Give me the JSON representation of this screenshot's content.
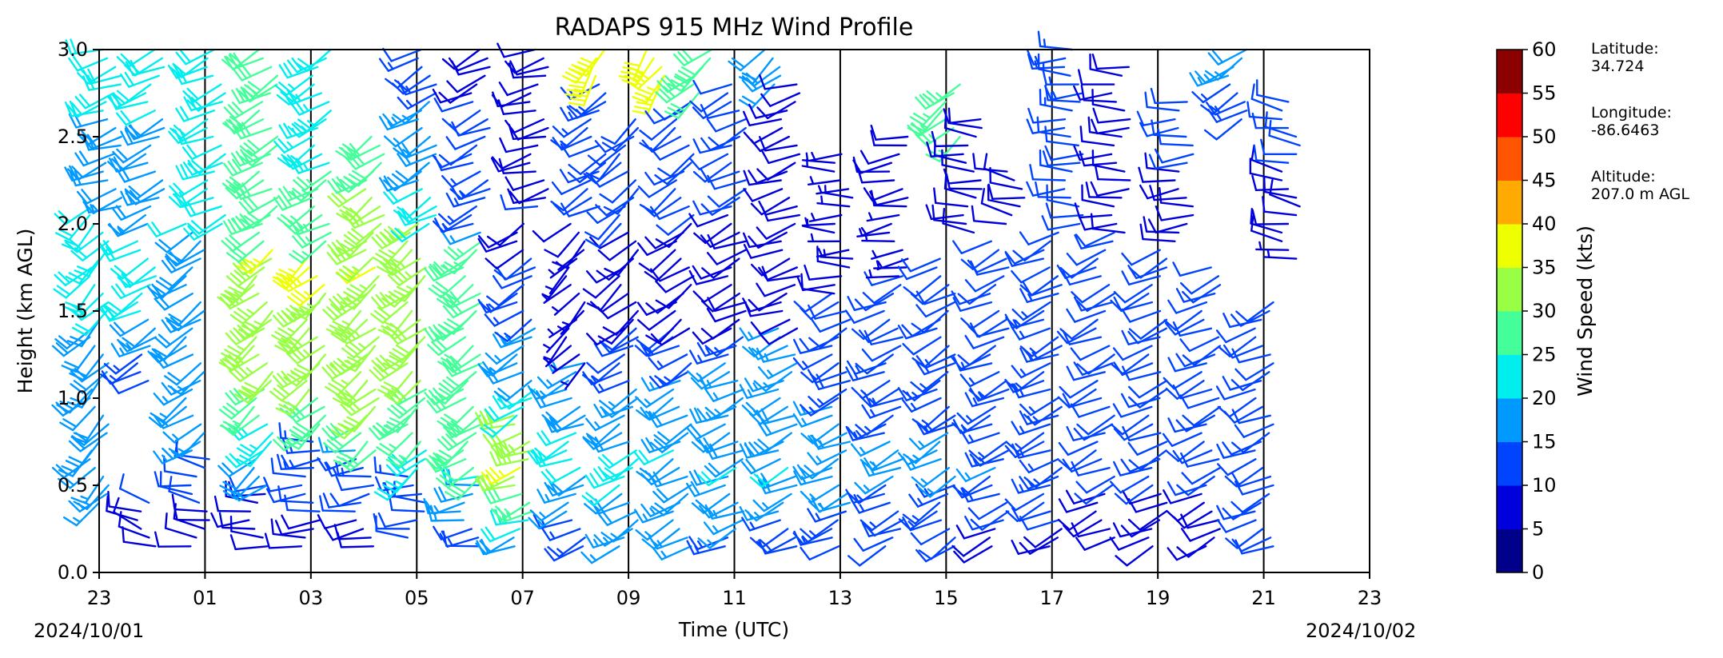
{
  "chart_data": {
    "type": "wind_barbs",
    "title": "RADAPS 915 MHz Wind Profile",
    "xlabel": "Time (UTC)",
    "ylabel": "Height (km AGL)",
    "x_ticks": [
      "23",
      "01",
      "03",
      "05",
      "07",
      "09",
      "11",
      "13",
      "15",
      "17",
      "19",
      "21",
      "23"
    ],
    "x_hours_from_start": [
      0,
      2,
      4,
      6,
      8,
      10,
      12,
      14,
      16,
      18,
      20,
      22,
      24
    ],
    "start_date_label": "2024/10/01",
    "end_date_label": "2024/10/02",
    "xlim": [
      0,
      24
    ],
    "ylim": [
      0.0,
      3.0
    ],
    "y_ticks": [
      "0.0",
      "0.5",
      "1.0",
      "1.5",
      "2.0",
      "2.5",
      "3.0"
    ],
    "vertical_lines_every_hours": 2,
    "colorbar": {
      "label": "Wind Speed (kts)",
      "ticks": [
        "0",
        "5",
        "10",
        "15",
        "20",
        "25",
        "30",
        "35",
        "40",
        "45",
        "50",
        "55",
        "60"
      ],
      "colors": [
        "#00008b",
        "#0000dd",
        "#0044ff",
        "#0099ff",
        "#00eeee",
        "#44ff99",
        "#99ff44",
        "#eeff00",
        "#ffaa00",
        "#ff5500",
        "#ff0000",
        "#8b0000"
      ]
    },
    "site": {
      "latitude_label": "Latitude:",
      "latitude": "34.724",
      "longitude_label": "Longitude:",
      "longitude": "-86.6463",
      "altitude_label": "Altitude:",
      "altitude": "207.0 m AGL"
    },
    "profiles": [
      {
        "t": 0.0,
        "h0": 0.4,
        "h1": 2.1,
        "dir": 225,
        "spd": [
          [
            0.4,
            17
          ],
          [
            1.5,
            20
          ],
          [
            2.1,
            20
          ]
        ]
      },
      {
        "t": 0.25,
        "h0": 2.1,
        "h1": 3.0,
        "dir": 250,
        "spd": [
          [
            2.1,
            17
          ],
          [
            3.0,
            22
          ]
        ]
      },
      {
        "t": 0.9,
        "h0": 0.15,
        "h1": 0.4,
        "dir": 290,
        "spd": [
          [
            0.15,
            8
          ],
          [
            0.4,
            10
          ]
        ]
      },
      {
        "t": 0.9,
        "h0": 1.1,
        "h1": 1.9,
        "dir": 240,
        "spd": [
          [
            1.1,
            10
          ],
          [
            1.5,
            20
          ],
          [
            1.9,
            22
          ]
        ]
      },
      {
        "t": 1.05,
        "h0": 2.0,
        "h1": 3.0,
        "dir": 245,
        "spd": [
          [
            2.0,
            17
          ],
          [
            3.0,
            22
          ]
        ]
      },
      {
        "t": 1.9,
        "h0": 0.15,
        "h1": 0.65,
        "dir": 280,
        "spd": [
          [
            0.15,
            8
          ],
          [
            0.65,
            12
          ]
        ]
      },
      {
        "t": 1.8,
        "h0": 0.7,
        "h1": 2.0,
        "dir": 235,
        "spd": [
          [
            0.7,
            15
          ],
          [
            1.3,
            18
          ],
          [
            2.0,
            20
          ]
        ]
      },
      {
        "t": 2.2,
        "h0": 2.0,
        "h1": 3.0,
        "dir": 245,
        "spd": [
          [
            2.0,
            20
          ],
          [
            3.0,
            22
          ]
        ]
      },
      {
        "t": 3.0,
        "h0": 0.15,
        "h1": 0.5,
        "dir": 270,
        "spd": [
          [
            0.15,
            8
          ],
          [
            0.5,
            10
          ]
        ]
      },
      {
        "t": 3.1,
        "h0": 0.5,
        "h1": 1.85,
        "dir": 230,
        "spd": [
          [
            0.5,
            15
          ],
          [
            1.2,
            33
          ],
          [
            1.85,
            35
          ]
        ]
      },
      {
        "t": 3.2,
        "h0": 1.9,
        "h1": 3.0,
        "dir": 240,
        "spd": [
          [
            1.9,
            28
          ],
          [
            3.0,
            30
          ]
        ]
      },
      {
        "t": 4.0,
        "h0": 0.15,
        "h1": 0.75,
        "dir": 265,
        "spd": [
          [
            0.15,
            8
          ],
          [
            0.75,
            14
          ]
        ]
      },
      {
        "t": 4.1,
        "h0": 0.8,
        "h1": 1.8,
        "dir": 230,
        "spd": [
          [
            0.8,
            27
          ],
          [
            1.3,
            33
          ],
          [
            1.8,
            36
          ]
        ]
      },
      {
        "t": 4.2,
        "h0": 1.9,
        "h1": 3.0,
        "dir": 240,
        "spd": [
          [
            1.9,
            27
          ],
          [
            3.0,
            22
          ]
        ]
      },
      {
        "t": 5.0,
        "h0": 0.15,
        "h1": 0.7,
        "dir": 260,
        "spd": [
          [
            0.15,
            8
          ],
          [
            0.7,
            15
          ]
        ]
      },
      {
        "t": 5.1,
        "h0": 0.7,
        "h1": 1.75,
        "dir": 230,
        "spd": [
          [
            0.7,
            28
          ],
          [
            1.2,
            33
          ],
          [
            1.75,
            35
          ]
        ]
      },
      {
        "t": 5.2,
        "h0": 1.8,
        "h1": 2.5,
        "dir": 235,
        "spd": [
          [
            1.8,
            33
          ],
          [
            2.5,
            28
          ]
        ]
      },
      {
        "t": 6.0,
        "h0": 0.2,
        "h1": 0.55,
        "dir": 270,
        "spd": [
          [
            0.2,
            10
          ],
          [
            0.55,
            14
          ]
        ]
      },
      {
        "t": 6.0,
        "h0": 0.55,
        "h1": 2.0,
        "dir": 230,
        "spd": [
          [
            0.55,
            22
          ],
          [
            1.2,
            32
          ],
          [
            2.0,
            33
          ]
        ]
      },
      {
        "t": 6.2,
        "h0": 2.0,
        "h1": 3.0,
        "dir": 240,
        "spd": [
          [
            2.0,
            22
          ],
          [
            3.0,
            12
          ]
        ]
      },
      {
        "t": 7.0,
        "h0": 0.15,
        "h1": 0.55,
        "dir": 260,
        "spd": [
          [
            0.15,
            12
          ],
          [
            0.55,
            20
          ]
        ]
      },
      {
        "t": 7.05,
        "h0": 0.55,
        "h1": 1.9,
        "dir": 235,
        "spd": [
          [
            0.55,
            28
          ],
          [
            1.2,
            30
          ],
          [
            1.9,
            27
          ]
        ]
      },
      {
        "t": 7.2,
        "h0": 1.95,
        "h1": 3.0,
        "dir": 245,
        "spd": [
          [
            1.95,
            15
          ],
          [
            3.0,
            8
          ]
        ]
      },
      {
        "t": 8.0,
        "h0": 0.15,
        "h1": 0.9,
        "dir": 250,
        "spd": [
          [
            0.15,
            18
          ],
          [
            0.6,
            35
          ],
          [
            0.9,
            30
          ]
        ]
      },
      {
        "t": 8.05,
        "h0": 0.9,
        "h1": 2.0,
        "dir": 240,
        "spd": [
          [
            0.9,
            22
          ],
          [
            1.5,
            14
          ],
          [
            2.0,
            8
          ]
        ]
      },
      {
        "t": 8.3,
        "h0": 2.1,
        "h1": 3.0,
        "dir": 255,
        "spd": [
          [
            2.1,
            10
          ],
          [
            3.0,
            8
          ]
        ]
      },
      {
        "t": 9.0,
        "h0": 0.15,
        "h1": 1.2,
        "dir": 245,
        "spd": [
          [
            0.15,
            12
          ],
          [
            0.7,
            22
          ],
          [
            1.2,
            15
          ]
        ]
      },
      {
        "t": 9.0,
        "h0": 1.2,
        "h1": 2.0,
        "dir": 225,
        "spd": [
          [
            1.2,
            5
          ],
          [
            2.0,
            8
          ]
        ]
      },
      {
        "t": 9.4,
        "h0": 2.1,
        "h1": 2.8,
        "dir": 240,
        "spd": [
          [
            2.1,
            10
          ],
          [
            2.8,
            15
          ]
        ]
      },
      {
        "t": 9.5,
        "h0": 2.85,
        "h1": 3.0,
        "dir": 210,
        "spd": [
          [
            2.85,
            38
          ],
          [
            3.0,
            38
          ]
        ]
      },
      {
        "t": 10.0,
        "h0": 0.15,
        "h1": 1.4,
        "dir": 240,
        "spd": [
          [
            0.15,
            15
          ],
          [
            0.6,
            22
          ],
          [
            1.4,
            10
          ]
        ]
      },
      {
        "t": 10.0,
        "h0": 1.4,
        "h1": 2.6,
        "dir": 230,
        "spd": [
          [
            1.4,
            8
          ],
          [
            2.6,
            12
          ]
        ]
      },
      {
        "t": 10.5,
        "h0": 2.8,
        "h1": 3.0,
        "dir": 215,
        "spd": [
          [
            2.8,
            37
          ],
          [
            3.0,
            38
          ]
        ]
      },
      {
        "t": 11.0,
        "h0": 0.15,
        "h1": 1.4,
        "dir": 240,
        "spd": [
          [
            0.15,
            15
          ],
          [
            0.7,
            20
          ],
          [
            1.4,
            12
          ]
        ]
      },
      {
        "t": 11.05,
        "h0": 1.4,
        "h1": 2.7,
        "dir": 235,
        "spd": [
          [
            1.4,
            8
          ],
          [
            2.7,
            12
          ]
        ]
      },
      {
        "t": 11.4,
        "h0": 2.75,
        "h1": 3.0,
        "dir": 230,
        "spd": [
          [
            2.75,
            28
          ],
          [
            3.0,
            30
          ]
        ]
      },
      {
        "t": 12.0,
        "h0": 0.15,
        "h1": 1.35,
        "dir": 245,
        "spd": [
          [
            0.15,
            14
          ],
          [
            0.6,
            20
          ],
          [
            1.35,
            14
          ]
        ]
      },
      {
        "t": 12.05,
        "h0": 1.4,
        "h1": 2.8,
        "dir": 245,
        "spd": [
          [
            1.4,
            8
          ],
          [
            2.8,
            12
          ]
        ]
      },
      {
        "t": 12.7,
        "h0": 2.8,
        "h1": 3.0,
        "dir": 230,
        "spd": [
          [
            2.8,
            18
          ],
          [
            3.0,
            20
          ]
        ]
      },
      {
        "t": 13.0,
        "h0": 0.15,
        "h1": 1.4,
        "dir": 245,
        "spd": [
          [
            0.15,
            12
          ],
          [
            0.6,
            20
          ],
          [
            1.4,
            15
          ]
        ]
      },
      {
        "t": 13.05,
        "h0": 1.4,
        "h1": 2.8,
        "dir": 250,
        "spd": [
          [
            1.4,
            8
          ],
          [
            2.8,
            10
          ]
        ]
      },
      {
        "t": 14.0,
        "h0": 0.15,
        "h1": 1.6,
        "dir": 245,
        "spd": [
          [
            0.15,
            12
          ],
          [
            0.6,
            18
          ],
          [
            1.6,
            10
          ]
        ]
      },
      {
        "t": 14.05,
        "h0": 1.6,
        "h1": 2.4,
        "dir": 270,
        "spd": [
          [
            1.6,
            8
          ],
          [
            2.4,
            6
          ]
        ]
      },
      {
        "t": 15.0,
        "h0": 0.15,
        "h1": 1.7,
        "dir": 245,
        "spd": [
          [
            0.15,
            10
          ],
          [
            0.6,
            16
          ],
          [
            1.7,
            10
          ]
        ]
      },
      {
        "t": 15.1,
        "h0": 1.7,
        "h1": 2.5,
        "dir": 260,
        "spd": [
          [
            1.7,
            7
          ],
          [
            2.5,
            8
          ]
        ]
      },
      {
        "t": 16.0,
        "h0": 0.15,
        "h1": 1.8,
        "dir": 240,
        "spd": [
          [
            0.15,
            10
          ],
          [
            0.6,
            16
          ],
          [
            1.8,
            10
          ]
        ]
      },
      {
        "t": 16.1,
        "h0": 2.5,
        "h1": 2.8,
        "dir": 230,
        "spd": [
          [
            2.5,
            27
          ],
          [
            2.8,
            25
          ]
        ]
      },
      {
        "t": 16.5,
        "h0": 1.95,
        "h1": 2.6,
        "dir": 275,
        "spd": [
          [
            1.95,
            8
          ],
          [
            2.6,
            10
          ]
        ]
      },
      {
        "t": 17.0,
        "h0": 0.15,
        "h1": 1.9,
        "dir": 245,
        "spd": [
          [
            0.15,
            8
          ],
          [
            0.6,
            15
          ],
          [
            1.9,
            10
          ]
        ]
      },
      {
        "t": 17.3,
        "h0": 2.0,
        "h1": 2.3,
        "dir": 280,
        "spd": [
          [
            2.0,
            8
          ],
          [
            2.3,
            8
          ]
        ]
      },
      {
        "t": 18.0,
        "h0": 0.15,
        "h1": 1.95,
        "dir": 245,
        "spd": [
          [
            0.15,
            8
          ],
          [
            0.6,
            14
          ],
          [
            1.95,
            12
          ]
        ]
      },
      {
        "t": 18.4,
        "h0": 2.0,
        "h1": 3.0,
        "dir": 270,
        "spd": [
          [
            2.0,
            10
          ],
          [
            3.0,
            14
          ]
        ]
      },
      {
        "t": 19.0,
        "h0": 0.2,
        "h1": 1.95,
        "dir": 245,
        "spd": [
          [
            0.2,
            8
          ],
          [
            0.8,
            12
          ],
          [
            1.95,
            10
          ]
        ]
      },
      {
        "t": 19.3,
        "h0": 1.95,
        "h1": 2.9,
        "dir": 270,
        "spd": [
          [
            1.95,
            8
          ],
          [
            2.9,
            10
          ]
        ]
      },
      {
        "t": 20.0,
        "h0": 0.15,
        "h1": 1.85,
        "dir": 245,
        "spd": [
          [
            0.15,
            8
          ],
          [
            0.8,
            12
          ],
          [
            1.85,
            10
          ]
        ]
      },
      {
        "t": 20.5,
        "h0": 1.9,
        "h1": 2.7,
        "dir": 265,
        "spd": [
          [
            1.9,
            8
          ],
          [
            2.7,
            12
          ]
        ]
      },
      {
        "t": 21.0,
        "h0": 0.15,
        "h1": 1.75,
        "dir": 245,
        "spd": [
          [
            0.15,
            8
          ],
          [
            0.8,
            12
          ],
          [
            1.75,
            10
          ]
        ]
      },
      {
        "t": 21.5,
        "h0": 2.6,
        "h1": 3.0,
        "dir": 240,
        "spd": [
          [
            2.6,
            12
          ],
          [
            3.0,
            18
          ]
        ]
      },
      {
        "t": 22.0,
        "h0": 0.15,
        "h1": 1.55,
        "dir": 245,
        "spd": [
          [
            0.15,
            12
          ],
          [
            0.8,
            10
          ],
          [
            1.55,
            10
          ]
        ]
      },
      {
        "t": 22.5,
        "h0": 1.8,
        "h1": 2.7,
        "dir": 280,
        "spd": [
          [
            1.8,
            7
          ],
          [
            2.7,
            12
          ]
        ]
      }
    ]
  }
}
